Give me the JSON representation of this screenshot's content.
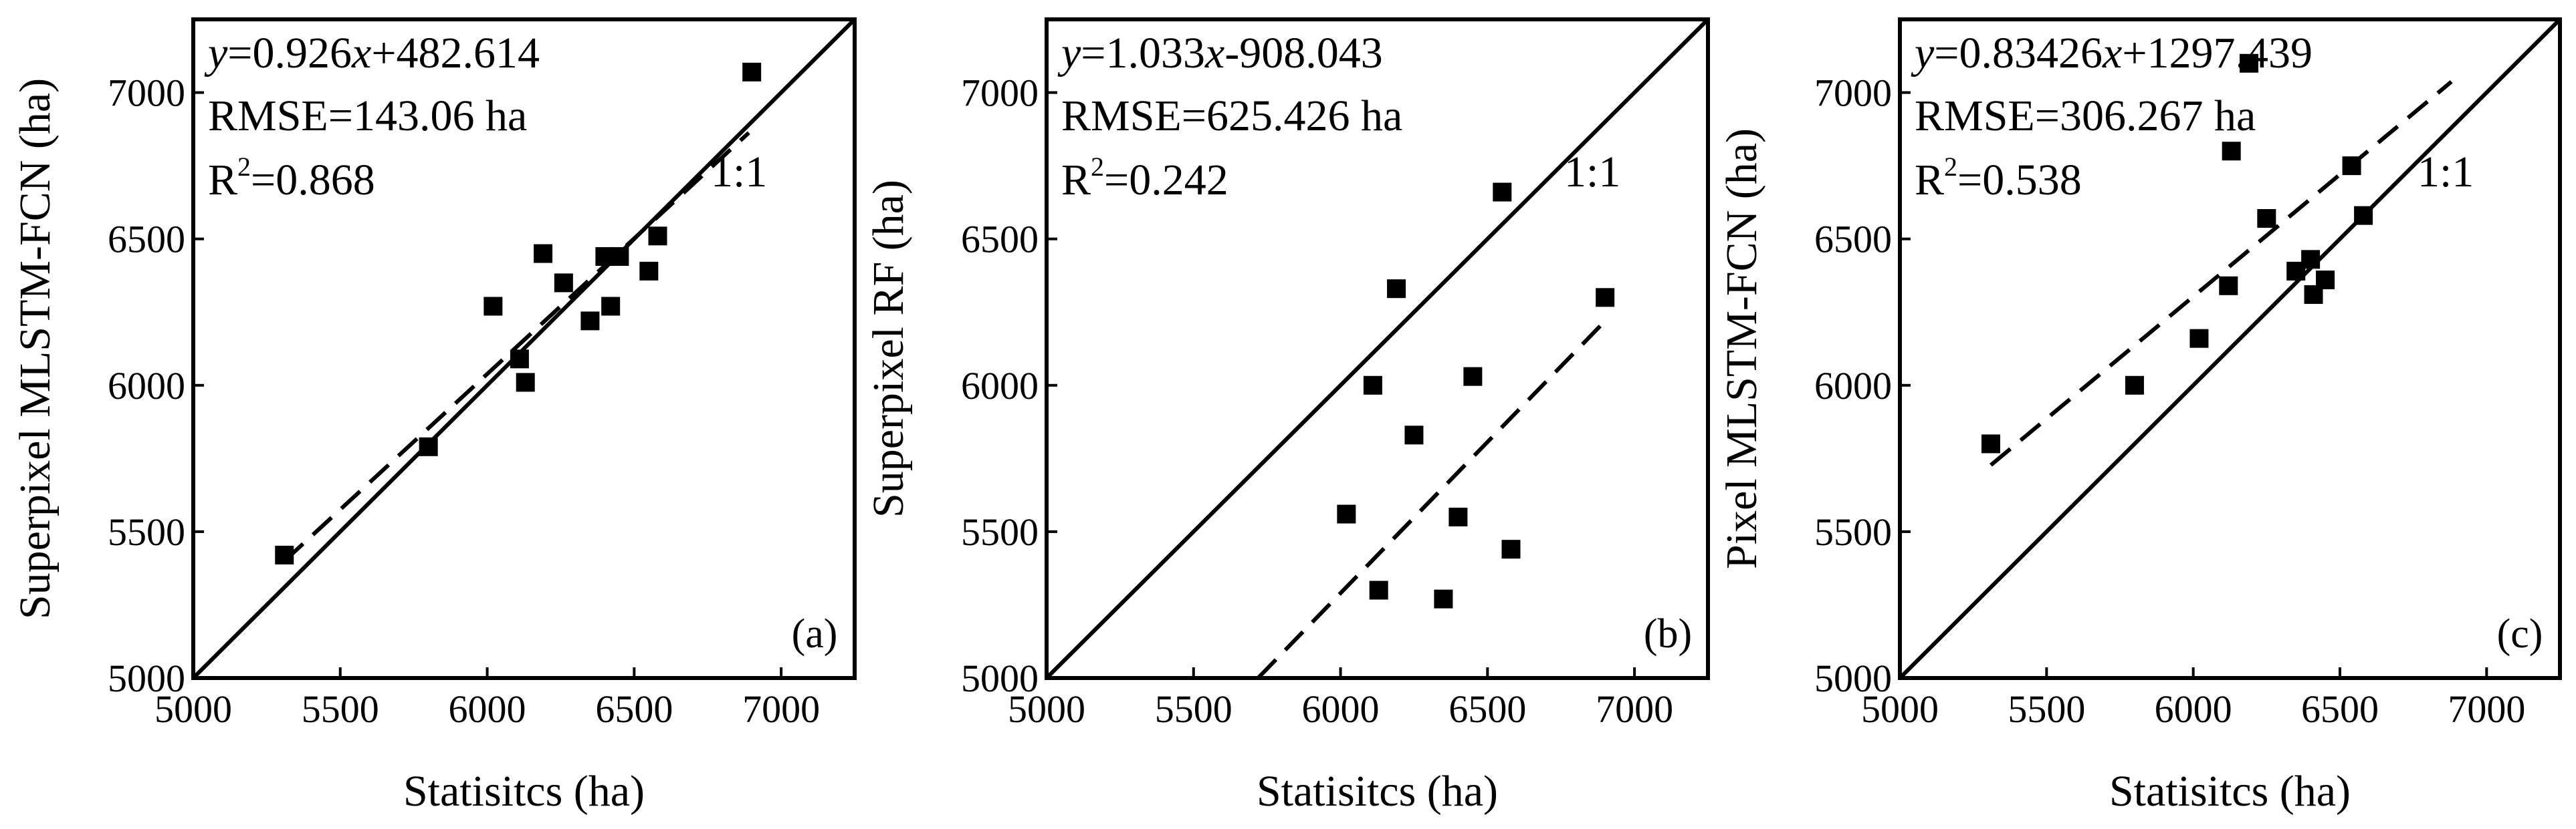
{
  "chart_data": [
    {
      "type": "scatter",
      "panel_label": "(a)",
      "xlabel": "Statisitcs (ha)",
      "ylabel": "Superpixel MLSTM-FCN (ha)",
      "xlim": [
        5000,
        7250
      ],
      "ylim": [
        5000,
        7250
      ],
      "xticks": [
        "5000",
        "5500",
        "6000",
        "6500",
        "7000"
      ],
      "yticks": [
        "5000",
        "5500",
        "6000",
        "6500",
        "7000"
      ],
      "equation": {
        "y": "y",
        "mid": "=0.926",
        "x": "x",
        "tail": "+482.614"
      },
      "rmse": "RMSE=143.06 ha",
      "r2": {
        "pre": "R",
        "sup": "2",
        "post": "=0.868"
      },
      "one_to_one_label": "1:1",
      "fit": {
        "slope": 0.926,
        "intercept": 482.614,
        "x_range": [
          5310,
          6890
        ]
      },
      "points": [
        {
          "x": 5310,
          "y": 5420
        },
        {
          "x": 5800,
          "y": 5790
        },
        {
          "x": 6020,
          "y": 6270
        },
        {
          "x": 6110,
          "y": 6090
        },
        {
          "x": 6130,
          "y": 6010
        },
        {
          "x": 6190,
          "y": 6450
        },
        {
          "x": 6260,
          "y": 6350
        },
        {
          "x": 6350,
          "y": 6220
        },
        {
          "x": 6400,
          "y": 6440
        },
        {
          "x": 6420,
          "y": 6270
        },
        {
          "x": 6450,
          "y": 6440
        },
        {
          "x": 6550,
          "y": 6390
        },
        {
          "x": 6580,
          "y": 6510
        },
        {
          "x": 6900,
          "y": 7070
        }
      ]
    },
    {
      "type": "scatter",
      "panel_label": "(b)",
      "xlabel": "Statisitcs (ha)",
      "ylabel": "Superpixel RF (ha)",
      "xlim": [
        5000,
        7250
      ],
      "ylim": [
        5000,
        7250
      ],
      "xticks": [
        "5000",
        "5500",
        "6000",
        "6500",
        "7000"
      ],
      "yticks": [
        "5000",
        "5500",
        "6000",
        "6500",
        "7000"
      ],
      "equation": {
        "y": "y",
        "mid": "=1.033",
        "x": "x",
        "tail": "-908.043"
      },
      "rmse": "RMSE=625.426 ha",
      "r2": {
        "pre": "R",
        "sup": "2",
        "post": "=0.242"
      },
      "one_to_one_label": "1:1",
      "fit": {
        "slope": 1.033,
        "intercept": -908.043,
        "x_range": [
          5720,
          6900
        ]
      },
      "points": [
        {
          "x": 6020,
          "y": 5560
        },
        {
          "x": 6110,
          "y": 6000
        },
        {
          "x": 6130,
          "y": 5300
        },
        {
          "x": 6190,
          "y": 6330
        },
        {
          "x": 6250,
          "y": 5830
        },
        {
          "x": 6350,
          "y": 5270
        },
        {
          "x": 6400,
          "y": 5550
        },
        {
          "x": 6450,
          "y": 6030
        },
        {
          "x": 6550,
          "y": 6660
        },
        {
          "x": 6580,
          "y": 5440
        },
        {
          "x": 6900,
          "y": 6300
        }
      ]
    },
    {
      "type": "scatter",
      "panel_label": "(c)",
      "xlabel": "Statisitcs (ha)",
      "ylabel": "Pixel MLSTM-FCN (ha)",
      "xlim": [
        5000,
        7250
      ],
      "ylim": [
        5000,
        7250
      ],
      "xticks": [
        "5000",
        "5500",
        "6000",
        "6500",
        "7000"
      ],
      "yticks": [
        "5000",
        "5500",
        "6000",
        "6500",
        "7000"
      ],
      "equation": {
        "y": "y",
        "mid": "=0.83426",
        "x": "x",
        "tail": "+1297.439"
      },
      "rmse": "RMSE=306.267 ha",
      "r2": {
        "pre": "R",
        "sup": "2",
        "post": "=0.538"
      },
      "one_to_one_label": "1:1",
      "fit": {
        "slope": 0.83426,
        "intercept": 1297.439,
        "x_range": [
          5310,
          6880
        ]
      },
      "points": [
        {
          "x": 5310,
          "y": 5800
        },
        {
          "x": 5800,
          "y": 6000
        },
        {
          "x": 6020,
          "y": 6160
        },
        {
          "x": 6120,
          "y": 6340
        },
        {
          "x": 6130,
          "y": 6800
        },
        {
          "x": 6190,
          "y": 7100
        },
        {
          "x": 6250,
          "y": 6570
        },
        {
          "x": 6350,
          "y": 6390
        },
        {
          "x": 6400,
          "y": 6430
        },
        {
          "x": 6410,
          "y": 6310
        },
        {
          "x": 6450,
          "y": 6360
        },
        {
          "x": 6540,
          "y": 6750
        },
        {
          "x": 6580,
          "y": 6580
        }
      ]
    }
  ]
}
